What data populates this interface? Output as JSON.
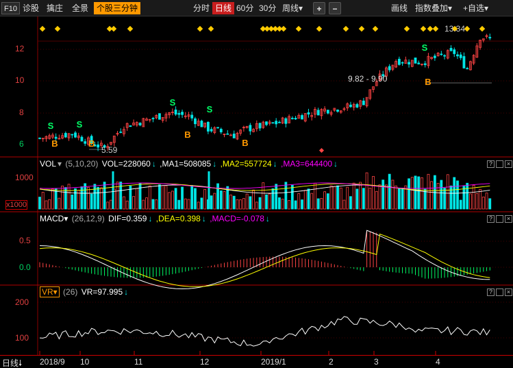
{
  "toolbar": {
    "f10": "F10",
    "items": [
      "诊股",
      "擒庄",
      "全景"
    ],
    "active_item": "个股三分钟",
    "periods": [
      "分时",
      "日线",
      "60分",
      "30分",
      "周线▾"
    ],
    "selected_period": "日线",
    "zoom_in": "+",
    "zoom_out": "−",
    "draw": "画线",
    "overlay": "指数叠加▾",
    "watchlist": "+自选▾"
  },
  "colors": {
    "up": "#ff4444",
    "down": "#00e5e5",
    "grid": "#8b0000",
    "signal": "#ffcc00",
    "vol_ma1": "#ffffff",
    "vol_ma2": "#ffff00",
    "vol_ma3": "#ff00ff",
    "dif": "#ffffff",
    "dea": "#ffff00",
    "macd_pos": "#ff4444",
    "macd_neg": "#00ff66"
  },
  "price_pane": {
    "y_ticks": [
      "12",
      "10",
      "8",
      "6"
    ],
    "high_label": "13.34",
    "low_label": "5.59",
    "range_label": "9.82 - 9.90",
    "buy_label": "B",
    "sell_label": "S"
  },
  "vol_pane": {
    "name": "VOL",
    "params": "(5,10,20)",
    "vol_label": "VOL=228060",
    "ma1_label": ",MA1=508085",
    "ma2_label": ",MA2=557724",
    "ma3_label": ",MA3=644400",
    "y_tick": "1000",
    "unit": "x1000",
    "controls": [
      "?",
      "□",
      "×"
    ]
  },
  "macd_pane": {
    "name": "MACD▾",
    "params": "(26,12,9)",
    "dif_label": "DIF=0.359",
    "dea_label": ",DEA=0.398",
    "macd_label": ",MACD=-0.078",
    "y_ticks": [
      "0.5",
      "0.0"
    ]
  },
  "vr_pane": {
    "name": "VR▾",
    "params": "(26)",
    "vr_label": "VR=97.995",
    "y_ticks": [
      "200",
      "100"
    ]
  },
  "x_axis": {
    "period_label": "日线",
    "labels": [
      "2018/9",
      "10",
      "11",
      "12",
      "2019/1",
      "2",
      "3",
      "4"
    ]
  },
  "chart_data": {
    "type": "candlestick",
    "price_axis_ticks": [
      12,
      10,
      8,
      6
    ],
    "price_high": 13.34,
    "price_low": 5.59,
    "vol": 228060,
    "vol_ma": [
      508085,
      557724,
      644400
    ],
    "dif": 0.359,
    "dea": 0.398,
    "macd": -0.078,
    "vr": 97.995
  }
}
